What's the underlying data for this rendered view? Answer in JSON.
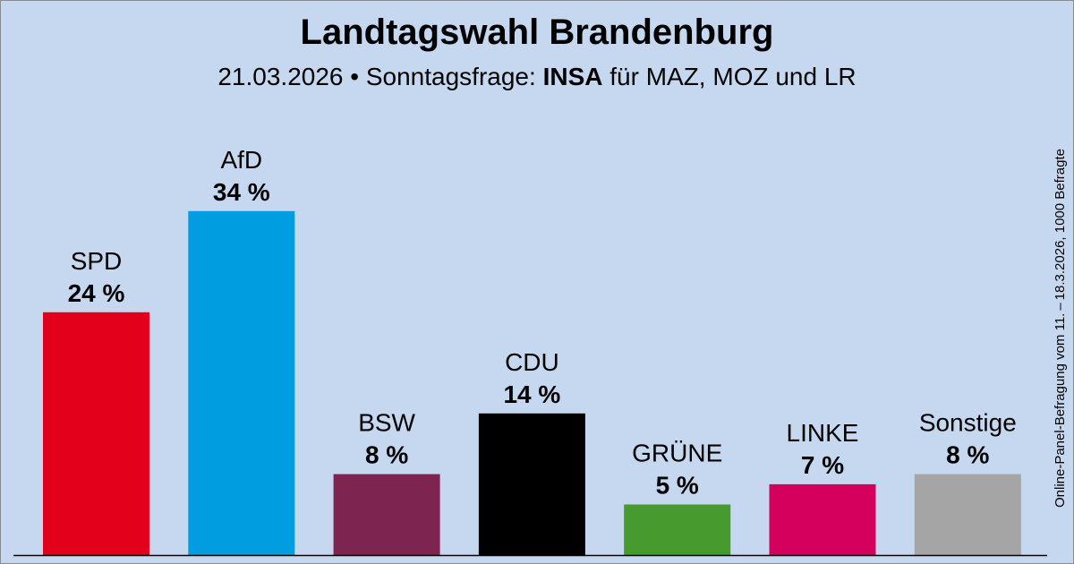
{
  "title": "Landtagswahl Brandenburg",
  "subtitle": {
    "date": "21.03.2026",
    "separator": "•",
    "label": "Sonntagsfrage:",
    "institute": "INSA",
    "client": "für MAZ, MOZ und LR"
  },
  "note": "Online-Panel-Befragung vom 11. – 18.3.2026, 1000 Befragte",
  "chart_data": {
    "type": "bar",
    "categories": [
      "SPD",
      "AfD",
      "BSW",
      "CDU",
      "GRÜNE",
      "LINKE",
      "Sonstige"
    ],
    "values": [
      24,
      34,
      8,
      14,
      5,
      7,
      8
    ],
    "value_labels": [
      "24 %",
      "34 %",
      "8 %",
      "14 %",
      "5 %",
      "7 %",
      "8 %"
    ],
    "colors": [
      "#e3001b",
      "#009ee0",
      "#7d2450",
      "#000000",
      "#479a2e",
      "#d5005e",
      "#a5a5a5"
    ],
    "unit": "%",
    "ylim": [
      0,
      34
    ],
    "grid": false,
    "legend": "none"
  }
}
